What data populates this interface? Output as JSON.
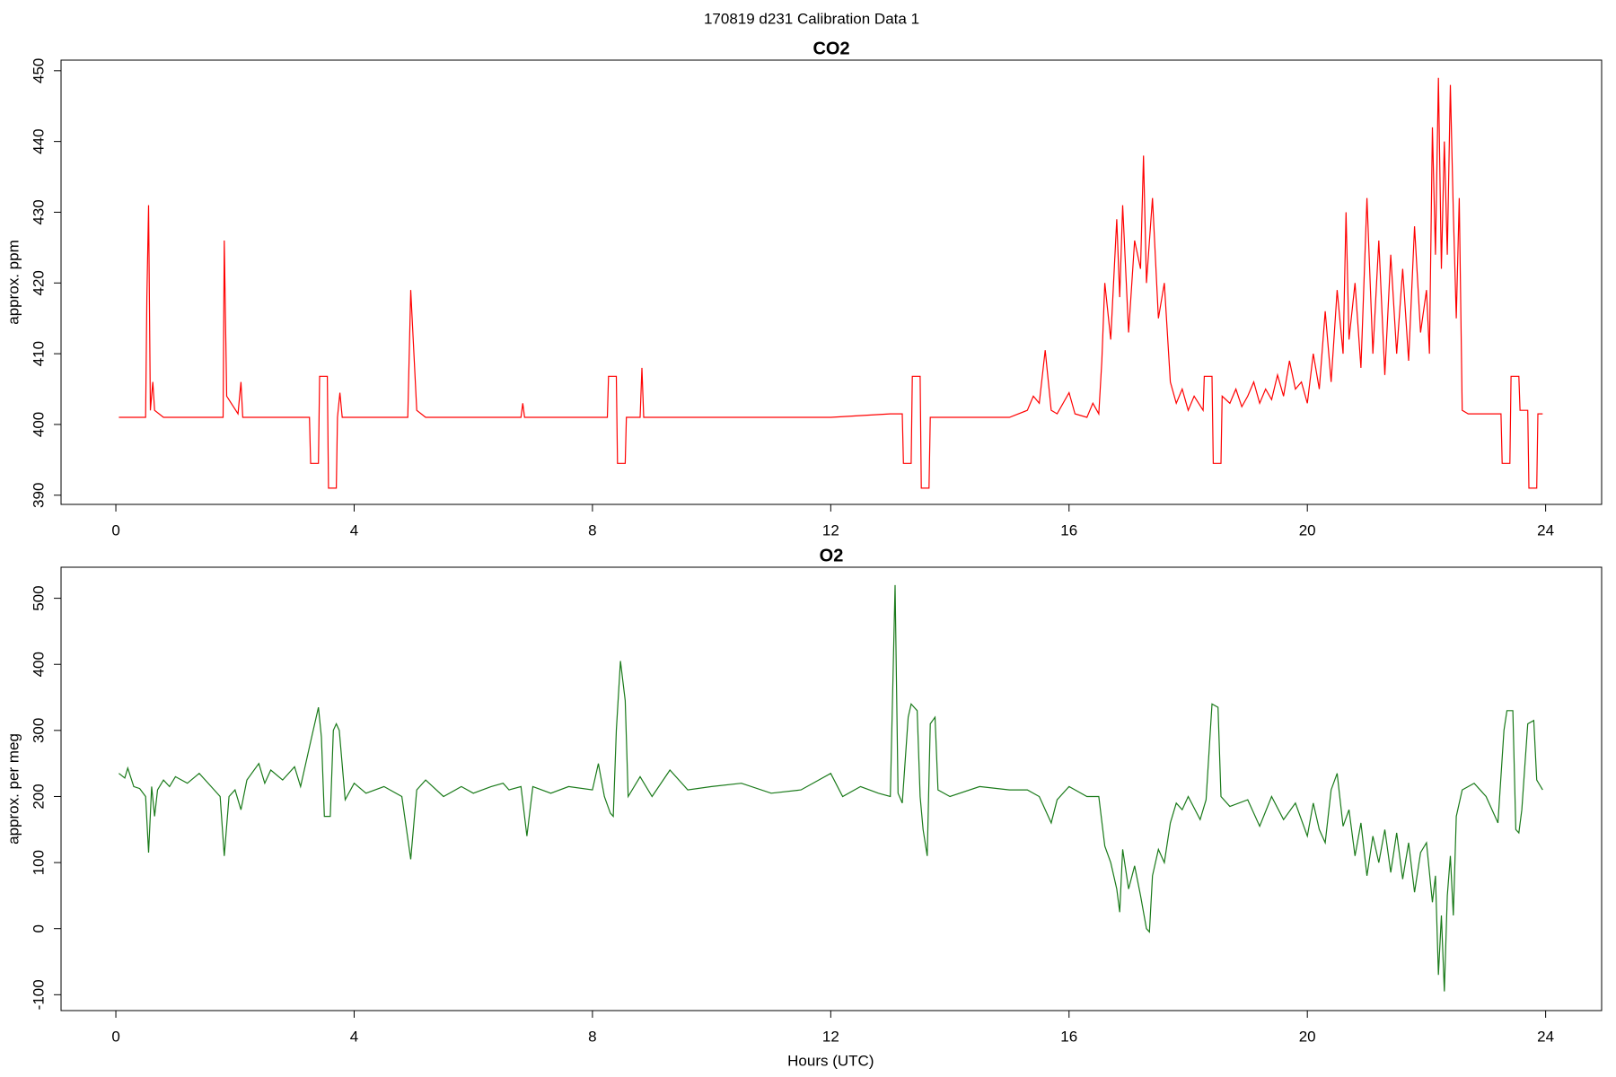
{
  "title": "170819   d231   Calibration Data 1",
  "chart_data": [
    {
      "type": "line",
      "title": "CO2",
      "y_label": "approx. ppm",
      "color": "#ff0000",
      "xlim": [
        -0.92,
        24.94
      ],
      "ylim": [
        388.7,
        451.5
      ],
      "xticks": [
        0,
        4,
        8,
        12,
        16,
        20,
        24
      ],
      "yticks": [
        390,
        400,
        410,
        420,
        430,
        440,
        450
      ],
      "x": [
        0.05,
        0.5,
        0.52,
        0.55,
        0.58,
        0.62,
        0.65,
        0.8,
        1.8,
        1.82,
        1.86,
        2.05,
        2.1,
        2.13,
        3.25,
        3.27,
        3.4,
        3.42,
        3.55,
        3.57,
        3.7,
        3.72,
        3.76,
        3.8,
        4.9,
        4.95,
        5.05,
        5.2,
        6.8,
        6.83,
        6.86,
        8.25,
        8.27,
        8.4,
        8.42,
        8.55,
        8.57,
        8.8,
        8.83,
        8.86,
        10.5,
        12,
        13,
        13.2,
        13.22,
        13.35,
        13.37,
        13.5,
        13.52,
        13.65,
        13.67,
        15,
        15.3,
        15.4,
        15.5,
        15.6,
        15.7,
        15.8,
        16,
        16.1,
        16.3,
        16.4,
        16.5,
        16.55,
        16.6,
        16.7,
        16.8,
        16.85,
        16.9,
        17,
        17.1,
        17.2,
        17.25,
        17.3,
        17.4,
        17.5,
        17.6,
        17.7,
        17.8,
        17.9,
        18,
        18.1,
        18.25,
        18.27,
        18.4,
        18.42,
        18.55,
        18.57,
        18.7,
        18.8,
        18.9,
        19,
        19.1,
        19.2,
        19.3,
        19.4,
        19.5,
        19.6,
        19.7,
        19.8,
        19.9,
        20,
        20.1,
        20.2,
        20.3,
        20.4,
        20.5,
        20.6,
        20.65,
        20.7,
        20.8,
        20.9,
        21,
        21.1,
        21.2,
        21.3,
        21.4,
        21.5,
        21.6,
        21.7,
        21.8,
        21.9,
        22,
        22.05,
        22.1,
        22.15,
        22.2,
        22.25,
        22.3,
        22.35,
        22.4,
        22.45,
        22.5,
        22.55,
        22.6,
        22.7,
        23.25,
        23.27,
        23.4,
        23.42,
        23.55,
        23.57,
        23.7,
        23.72,
        23.85,
        23.87,
        23.95
      ],
      "values": [
        401,
        401,
        418,
        431,
        402,
        406,
        402,
        401,
        401,
        426,
        404,
        401.5,
        406,
        401,
        401,
        394.5,
        394.5,
        406.8,
        406.8,
        391,
        391,
        401,
        404.5,
        401,
        401,
        419,
        402,
        401,
        401,
        403,
        401,
        401,
        406.8,
        406.8,
        394.5,
        394.5,
        401,
        401,
        408,
        401,
        401,
        401,
        401.5,
        401.5,
        394.5,
        394.5,
        406.8,
        406.8,
        391,
        391,
        401,
        401,
        402,
        404,
        403,
        410.5,
        402,
        401.5,
        404.5,
        401.5,
        401,
        403,
        401.5,
        409,
        420,
        412,
        429,
        418,
        431,
        413,
        426,
        422,
        438,
        420,
        432,
        415,
        420,
        406,
        403,
        405,
        402,
        404,
        402,
        406.8,
        406.8,
        394.5,
        394.5,
        404,
        403,
        405,
        402.5,
        404,
        406,
        403,
        405,
        403.5,
        407,
        404,
        409,
        405,
        406,
        403,
        410,
        405,
        416,
        406,
        419,
        410,
        430,
        412,
        420,
        408,
        432,
        410,
        426,
        407,
        424,
        410,
        422,
        409,
        428,
        413,
        419,
        410,
        442,
        424,
        449,
        422,
        440,
        424,
        448,
        430,
        415,
        432,
        402,
        401.5,
        401.5,
        394.5,
        394.5,
        406.8,
        406.8,
        402,
        402,
        391,
        391,
        401.5,
        401.5
      ]
    },
    {
      "type": "line",
      "title": "O2",
      "y_label": "approx. per meg",
      "x_label": "Hours (UTC)",
      "color": "#1a7a1a",
      "xlim": [
        -0.92,
        24.94
      ],
      "ylim": [
        -124,
        547
      ],
      "xticks": [
        0,
        4,
        8,
        12,
        16,
        20,
        24
      ],
      "yticks": [
        -100,
        0,
        100,
        200,
        300,
        400,
        500
      ],
      "x": [
        0.05,
        0.15,
        0.2,
        0.3,
        0.4,
        0.5,
        0.55,
        0.6,
        0.65,
        0.7,
        0.8,
        0.9,
        1,
        1.2,
        1.4,
        1.6,
        1.75,
        1.82,
        1.9,
        2,
        2.1,
        2.2,
        2.4,
        2.5,
        2.6,
        2.8,
        3,
        3.1,
        3.3,
        3.4,
        3.45,
        3.5,
        3.6,
        3.65,
        3.7,
        3.75,
        3.85,
        4,
        4.2,
        4.5,
        4.8,
        4.95,
        5.05,
        5.2,
        5.5,
        5.8,
        6,
        6.3,
        6.5,
        6.6,
        6.8,
        6.9,
        7,
        7.3,
        7.6,
        8,
        8.1,
        8.2,
        8.3,
        8.35,
        8.4,
        8.47,
        8.55,
        8.6,
        8.8,
        9,
        9.3,
        9.6,
        10,
        10.5,
        11,
        11.5,
        12,
        12.2,
        12.5,
        12.8,
        13,
        13.08,
        13.13,
        13.2,
        13.3,
        13.35,
        13.45,
        13.5,
        13.55,
        13.62,
        13.67,
        13.75,
        13.8,
        14,
        14.5,
        15,
        15.3,
        15.5,
        15.7,
        15.8,
        16,
        16.3,
        16.5,
        16.6,
        16.7,
        16.8,
        16.85,
        16.9,
        17,
        17.1,
        17.2,
        17.3,
        17.35,
        17.4,
        17.5,
        17.6,
        17.7,
        17.8,
        17.9,
        18,
        18.2,
        18.3,
        18.4,
        18.5,
        18.55,
        18.7,
        19,
        19.2,
        19.4,
        19.6,
        19.8,
        20,
        20.1,
        20.2,
        20.3,
        20.4,
        20.5,
        20.6,
        20.7,
        20.8,
        20.9,
        21,
        21.1,
        21.2,
        21.3,
        21.4,
        21.5,
        21.6,
        21.7,
        21.8,
        21.9,
        22,
        22.1,
        22.15,
        22.2,
        22.25,
        22.3,
        22.35,
        22.4,
        22.45,
        22.5,
        22.6,
        22.8,
        23,
        23.2,
        23.3,
        23.35,
        23.45,
        23.5,
        23.55,
        23.6,
        23.7,
        23.8,
        23.85,
        23.95
      ],
      "values": [
        235,
        228,
        243,
        215,
        212,
        200,
        115,
        215,
        170,
        210,
        225,
        215,
        230,
        220,
        235,
        215,
        200,
        110,
        200,
        210,
        180,
        225,
        250,
        220,
        240,
        225,
        245,
        215,
        295,
        335,
        290,
        170,
        170,
        300,
        310,
        300,
        195,
        220,
        205,
        215,
        200,
        105,
        210,
        225,
        200,
        215,
        205,
        215,
        220,
        210,
        215,
        140,
        215,
        205,
        215,
        210,
        250,
        200,
        175,
        170,
        300,
        405,
        345,
        200,
        230,
        200,
        240,
        210,
        215,
        220,
        205,
        210,
        235,
        200,
        215,
        205,
        200,
        520,
        205,
        190,
        320,
        340,
        330,
        200,
        150,
        110,
        310,
        320,
        210,
        200,
        215,
        210,
        210,
        200,
        160,
        195,
        215,
        200,
        200,
        125,
        100,
        60,
        25,
        120,
        60,
        95,
        50,
        0,
        -5,
        80,
        120,
        100,
        160,
        190,
        180,
        200,
        165,
        195,
        340,
        335,
        200,
        185,
        195,
        155,
        200,
        165,
        190,
        140,
        190,
        150,
        130,
        210,
        235,
        155,
        180,
        110,
        160,
        80,
        140,
        100,
        150,
        85,
        145,
        75,
        130,
        55,
        115,
        130,
        40,
        80,
        -70,
        20,
        -95,
        50,
        110,
        20,
        170,
        210,
        220,
        200,
        160,
        300,
        330,
        330,
        150,
        145,
        180,
        310,
        315,
        225,
        210
      ]
    }
  ]
}
